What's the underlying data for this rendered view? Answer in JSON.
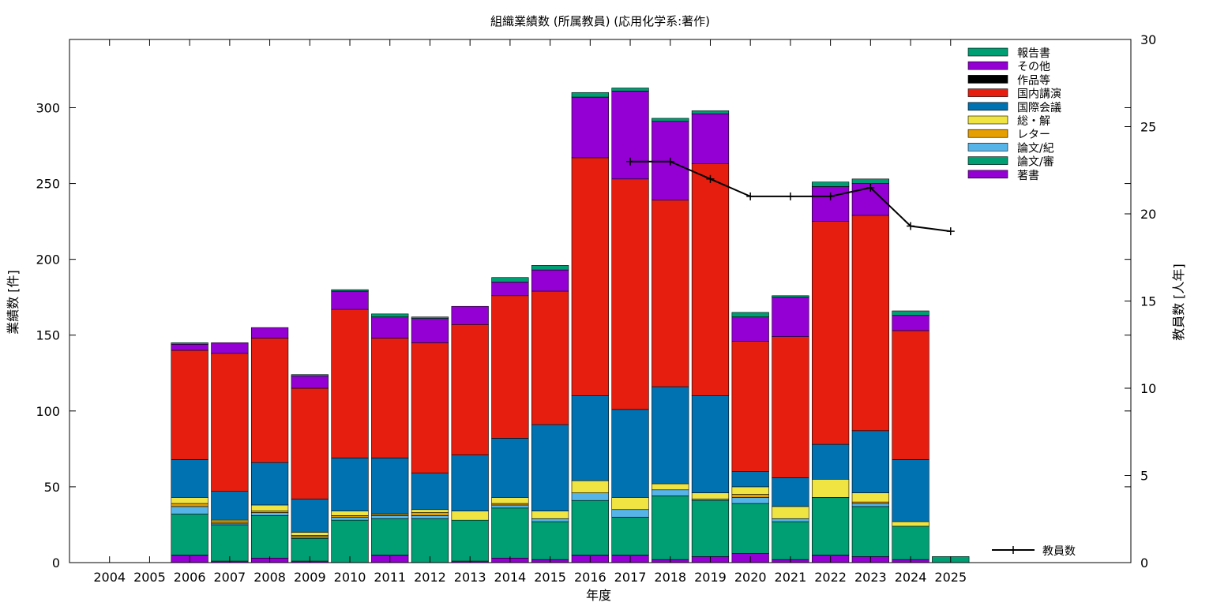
{
  "chart_data": {
    "type": "bar",
    "stacked": true,
    "title": "組織業績数 (所属教員) (応用化学系:著作)",
    "xlabel": "年度",
    "ylabel": "業績数 [件]",
    "y2label": "教員数 [人年]",
    "ylim": [
      0,
      345
    ],
    "y2lim": [
      0,
      30
    ],
    "yticks": [
      0,
      50,
      100,
      150,
      200,
      250,
      300
    ],
    "y2ticks": [
      0,
      5,
      10,
      15,
      20,
      25,
      30
    ],
    "grid": false,
    "legend_position": "top-right",
    "categories": [
      "2004",
      "2005",
      "2006",
      "2007",
      "2008",
      "2009",
      "2010",
      "2011",
      "2012",
      "2013",
      "2014",
      "2015",
      "2016",
      "2017",
      "2018",
      "2019",
      "2020",
      "2021",
      "2022",
      "2023",
      "2024",
      "2025"
    ],
    "series": [
      {
        "name": "著書",
        "color": "#9400d3",
        "values": [
          0,
          0,
          5,
          1,
          3,
          1,
          0,
          5,
          0,
          1,
          3,
          2,
          5,
          5,
          2,
          4,
          6,
          2,
          5,
          4,
          2,
          0
        ]
      },
      {
        "name": "論文/審",
        "color": "#009e73",
        "values": [
          0,
          0,
          27,
          24,
          28,
          15,
          28,
          24,
          29,
          27,
          33,
          25,
          36,
          25,
          42,
          37,
          33,
          25,
          38,
          33,
          22,
          4
        ]
      },
      {
        "name": "論文/紀",
        "color": "#56b4e9",
        "values": [
          0,
          0,
          5,
          1,
          2,
          1,
          2,
          2,
          2,
          0,
          2,
          2,
          5,
          5,
          4,
          1,
          4,
          2,
          0,
          2,
          0,
          0
        ]
      },
      {
        "name": "レター",
        "color": "#e69f00",
        "values": [
          0,
          0,
          2,
          1,
          1,
          1,
          1,
          1,
          2,
          0,
          1,
          0,
          0,
          0,
          0,
          0,
          2,
          0,
          0,
          1,
          0,
          0
        ]
      },
      {
        "name": "総・解",
        "color": "#f0e442",
        "values": [
          0,
          0,
          4,
          1,
          4,
          2,
          3,
          0,
          2,
          6,
          4,
          5,
          8,
          8,
          4,
          4,
          5,
          8,
          12,
          6,
          3,
          0
        ]
      },
      {
        "name": "国際会議",
        "color": "#0072b2",
        "values": [
          0,
          0,
          25,
          19,
          28,
          22,
          35,
          37,
          24,
          37,
          39,
          57,
          56,
          58,
          64,
          64,
          10,
          19,
          23,
          41,
          41,
          0
        ]
      },
      {
        "name": "国内講演",
        "color": "#e51e10",
        "values": [
          0,
          0,
          72,
          91,
          82,
          73,
          98,
          79,
          86,
          86,
          94,
          88,
          157,
          152,
          123,
          153,
          86,
          93,
          147,
          142,
          85,
          0
        ]
      },
      {
        "name": "作品等",
        "color": "#000000",
        "values": [
          0,
          0,
          0,
          0,
          0,
          0,
          0,
          0,
          0,
          0,
          0,
          0,
          0,
          0,
          0,
          0,
          0,
          0,
          0,
          0,
          0,
          0
        ]
      },
      {
        "name": "その他",
        "color": "#9400d3",
        "values": [
          0,
          0,
          4,
          7,
          7,
          8,
          12,
          14,
          16,
          12,
          9,
          14,
          40,
          58,
          52,
          33,
          16,
          26,
          23,
          21,
          10,
          0
        ]
      },
      {
        "name": "報告書",
        "color": "#009e73",
        "values": [
          0,
          0,
          1,
          0,
          0,
          1,
          1,
          2,
          1,
          0,
          3,
          3,
          3,
          2,
          2,
          2,
          3,
          1,
          3,
          3,
          3,
          0
        ]
      }
    ],
    "line_series": {
      "name": "教員数",
      "color": "#000000",
      "axis": "y2",
      "x": [
        "2017",
        "2018",
        "2019",
        "2020",
        "2021",
        "2022",
        "2023",
        "2024",
        "2025"
      ],
      "values": [
        23,
        23,
        22,
        21,
        21,
        21,
        21.5,
        19.3,
        19
      ]
    }
  }
}
